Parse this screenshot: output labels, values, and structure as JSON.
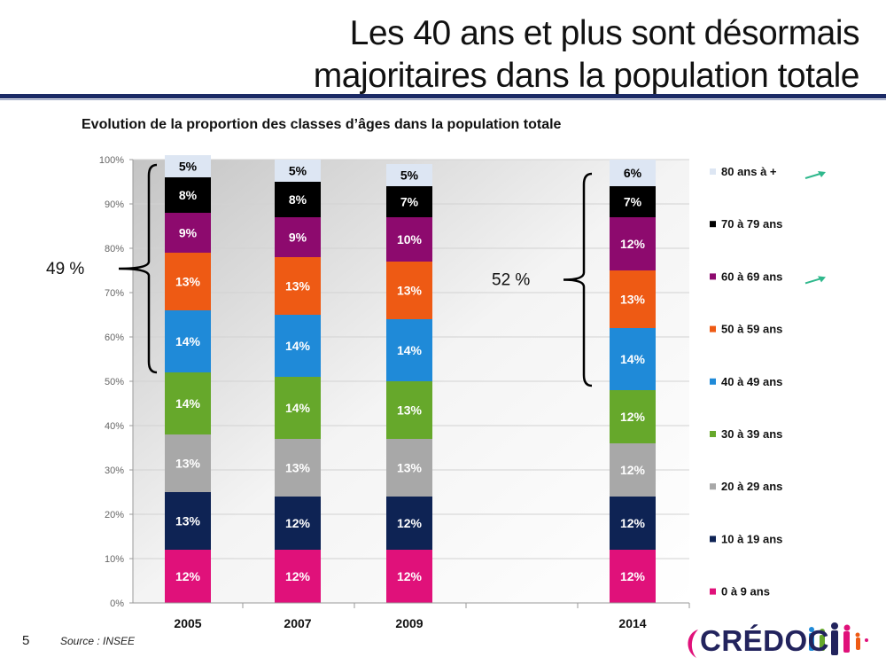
{
  "slide": {
    "title_line1": "Les 40 ans et plus sont désormais",
    "title_line2": "majoritaires dans la population totale",
    "page_number": "5",
    "source": "Source : INSEE",
    "logo_text": "CRÉDOC"
  },
  "colors": {
    "title_rule": "#1b2a66",
    "arrow": "#2fb88c"
  },
  "chart_data": {
    "type": "bar",
    "stacked": true,
    "title": "Evolution de la proportion des classes d’âges dans la population totale",
    "categories": [
      "2005",
      "2007",
      "2009",
      "2014"
    ],
    "ylim": [
      0,
      100
    ],
    "yticks": [
      "0%",
      "10%",
      "20%",
      "30%",
      "40%",
      "50%",
      "60%",
      "70%",
      "80%",
      "90%",
      "100%"
    ],
    "grid": true,
    "legend_position": "right",
    "series": [
      {
        "name": "0 à 9 ans",
        "color": "#e0117a",
        "values": [
          12,
          12,
          12,
          12
        ],
        "labels": [
          "12%",
          "12%",
          "12%",
          "12%"
        ]
      },
      {
        "name": "10 à 19 ans",
        "color": "#0e2354",
        "values": [
          13,
          12,
          12,
          12
        ],
        "labels": [
          "13%",
          "12%",
          "12%",
          "12%"
        ]
      },
      {
        "name": "20 à 29 ans",
        "color": "#a8a8a8",
        "values": [
          13,
          13,
          13,
          12
        ],
        "labels": [
          "13%",
          "13%",
          "13%",
          "12%"
        ]
      },
      {
        "name": "30 à 39 ans",
        "color": "#66a82b",
        "values": [
          14,
          14,
          13,
          12
        ],
        "labels": [
          "14%",
          "14%",
          "13%",
          "12%"
        ]
      },
      {
        "name": "40 à 49 ans",
        "color": "#1f8ad8",
        "values": [
          14,
          14,
          14,
          14
        ],
        "labels": [
          "14%",
          "14%",
          "14%",
          "14%"
        ]
      },
      {
        "name": "50 à 59 ans",
        "color": "#ee5a14",
        "values": [
          13,
          13,
          13,
          13
        ],
        "labels": [
          "13%",
          "13%",
          "13%",
          "13%"
        ]
      },
      {
        "name": "60 à 69 ans",
        "color": "#8d0a6e",
        "values": [
          9,
          9,
          10,
          12
        ],
        "labels": [
          "9%",
          "9%",
          "10%",
          "12%"
        ]
      },
      {
        "name": "70 à 79 ans",
        "color": "#000000",
        "values": [
          8,
          8,
          7,
          7
        ],
        "labels": [
          "8%",
          "8%",
          "7%",
          "7%"
        ]
      },
      {
        "name": "80 ans à +",
        "color": "#dde6f3",
        "values": [
          5,
          5,
          5,
          6
        ],
        "labels": [
          "5%",
          "5%",
          "5%",
          "6%"
        ]
      }
    ],
    "annotations": [
      {
        "text": "49 %",
        "category": "2005",
        "from": 52,
        "to": 100
      },
      {
        "text": "52 %",
        "category": "2014",
        "from": 49,
        "to": 98
      }
    ],
    "trend_arrows": [
      "80 ans à +",
      "60 à 69 ans"
    ]
  }
}
